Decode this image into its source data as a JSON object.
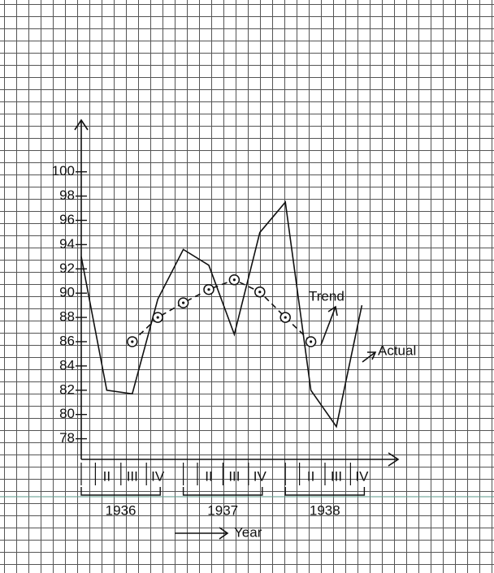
{
  "chart_data": {
    "type": "line",
    "categories": [
      null,
      "II",
      "III",
      "IV",
      null,
      "II",
      "III",
      "IV",
      null,
      "II",
      "III",
      "IV"
    ],
    "years": [
      "1936",
      "1937",
      "1938"
    ],
    "x_label": "Year",
    "series": [
      {
        "name": "Actual",
        "color": "#111111",
        "values": [
          93,
          82,
          81.7,
          89.5,
          93.6,
          92.3,
          86.6,
          95,
          97.5,
          82,
          79,
          89
        ]
      },
      {
        "name": "Trend",
        "color": "#111111",
        "dashed": true,
        "values": [
          null,
          null,
          86,
          88,
          89.2,
          90.3,
          91.1,
          90.1,
          88,
          86,
          null,
          null
        ]
      }
    ],
    "ylim": [
      76.3,
      104
    ],
    "yticks": [
      78,
      80,
      82,
      84,
      86,
      88,
      90,
      92,
      94,
      96,
      98,
      100
    ]
  }
}
